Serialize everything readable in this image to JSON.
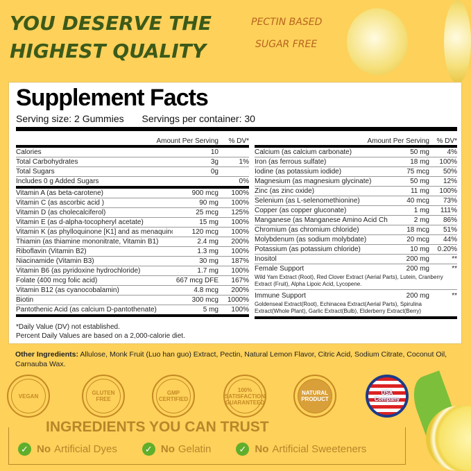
{
  "headline": {
    "line1": "YOU DESERVE THE",
    "line2": "HIGHEST QUALITY"
  },
  "tags": {
    "pectin": "PECTIN BASED",
    "sugar": "SUGAR FREE"
  },
  "facts": {
    "title": "Supplement Facts",
    "serving_size": "Serving size: 2 Gummies",
    "servings_per_container": "Servings per container: 30",
    "header_amount": "Amount Per Serving",
    "header_dv": "% DV*",
    "left_top": [
      {
        "name": "Calories",
        "amount": "10",
        "dv": ""
      },
      {
        "name": "Total Carbohydrates",
        "amount": "3g",
        "dv": "1%"
      },
      {
        "name": "Total Sugars",
        "amount": "0g",
        "dv": ""
      },
      {
        "name": "Includes 0 g Added Sugars",
        "amount": "",
        "dv": "0%"
      }
    ],
    "left_vitamins": [
      {
        "name": "Vitamin A (as beta-carotene)",
        "amount": "900 mcg",
        "dv": "100%"
      },
      {
        "name": "Vitamin C (as ascorbic acid )",
        "amount": "90 mg",
        "dv": "100%"
      },
      {
        "name": "Vitamin D (as cholecalciferol)",
        "amount": "25 mcg",
        "dv": "125%"
      },
      {
        "name": "Vitamin E (as d-alpha-tocopheryl acetate)",
        "amount": "15 mg",
        "dv": "100%"
      },
      {
        "name": "Vitamin K (as phylloquinone [K1] and as menaquinone-7 [K2])",
        "amount": "120 mcg",
        "dv": "100%"
      },
      {
        "name": "Thiamin (as thiamine mononitrate, Vitamin B1)",
        "amount": "2.4 mg",
        "dv": "200%"
      },
      {
        "name": "Riboflavin (Vitamin B2)",
        "amount": "1.3 mg",
        "dv": "100%"
      },
      {
        "name": "Niacinamide (Vitamin B3)",
        "amount": "30 mg",
        "dv": "187%"
      },
      {
        "name": "Vitamin B6 (as pyridoxine hydrochloride)",
        "amount": "1.7 mg",
        "dv": "100%"
      },
      {
        "name": "Folate (400 mcg folic acid)",
        "amount": "667 mcg DFE",
        "dv": "167%"
      },
      {
        "name": "Vitamin B12 (as cyanocobalamin)",
        "amount": "4.8 mcg",
        "dv": "200%"
      },
      {
        "name": "Biotin",
        "amount": "300 mcg",
        "dv": "1000%"
      },
      {
        "name": "Pantothenic Acid (as calcium D-pantothenate)",
        "amount": "5 mg",
        "dv": "100%"
      }
    ],
    "right_minerals": [
      {
        "name": "Calcium (as calcium carbonate)",
        "amount": "50 mg",
        "dv": "4%"
      },
      {
        "name": "Iron (as ferrous sulfate)",
        "amount": "18 mg",
        "dv": "100%"
      },
      {
        "name": "Iodine (as potassium iodide)",
        "amount": "75 mcg",
        "dv": "50%"
      },
      {
        "name": "Magnesium (as magnesium glycinate)",
        "amount": "50 mg",
        "dv": "12%"
      },
      {
        "name": "Zinc (as zinc oxide)",
        "amount": "11 mg",
        "dv": "100%"
      },
      {
        "name": "Selenium (as L-selenomethionine)",
        "amount": "40 mcg",
        "dv": "73%"
      },
      {
        "name": "Copper (as copper gluconate)",
        "amount": "1 mg",
        "dv": "111%"
      },
      {
        "name": "Manganese (as Manganese Amino Acid Chelate)",
        "amount": "2 mg",
        "dv": "86%"
      },
      {
        "name": "Chromium (as chromium chloride)",
        "amount": "18 mcg",
        "dv": "51%"
      },
      {
        "name": "Molybdenum (as sodium molybdate)",
        "amount": "20 mcg",
        "dv": "44%"
      },
      {
        "name": "Potassium (as potassium chloride)",
        "amount": "10 mg",
        "dv": "0.20%"
      },
      {
        "name": "Inositol",
        "amount": "200 mg",
        "dv": "**"
      }
    ],
    "female_support": {
      "name": "Female Support",
      "amount": "200 mg",
      "dv": "**",
      "detail": "Wild Yam Extract (Root), Red Clover Extract (Aerial Parts), Lutein, Cranberry Extract (Fruit), Alpha Lipoic Acid, Lycopene."
    },
    "immune_support": {
      "name": "Immune Support",
      "amount": "200 mg",
      "dv": "**",
      "detail": "Goldenseal Extract(Root), Echinacea Extract(Aerial Parts), Spirulina Extract(Whole Plant), Garlic Extract(Bulb), Elderberry Extract(Berry)"
    },
    "footnote1": "*Daily Value (DV) not established.",
    "footnote2": "Percent Daily Values are based on a 2,000-calorie diet."
  },
  "other_ingredients": {
    "label": "Other Ingredients:",
    "text": " Allulose, Monk Fruit (Luo han guo) Extract, Pectin, Natural Lemon Flavor, Citric Acid, Sodium Citrate, Coconut Oil, Carnauba Wax."
  },
  "badges": [
    {
      "icon": "vegan-icon",
      "text": "VEGAN"
    },
    {
      "icon": "gluten-free-icon",
      "text": "GLUTEN FREE"
    },
    {
      "icon": "gmp-icon",
      "text": "GMP CERTIFIED"
    },
    {
      "icon": "satisfaction-icon",
      "text": "100% SATISFACTION GUARANTEED"
    },
    {
      "icon": "natural-product-icon",
      "text": "NATURAL PRODUCT"
    },
    {
      "icon": "usa-flag-icon",
      "text": "USA Company"
    }
  ],
  "trust": {
    "title": "INGREDIENTS YOU CAN TRUST",
    "items": [
      {
        "no": "No",
        "text": "Artificial Dyes"
      },
      {
        "no": "No",
        "text": "Gelatin"
      },
      {
        "no": "No",
        "text": "Artificial Sweeteners"
      }
    ]
  },
  "colors": {
    "background": "#fdd15a",
    "headline": "#3c5a1a",
    "accent": "#b8862a",
    "check": "#5fae2c"
  }
}
